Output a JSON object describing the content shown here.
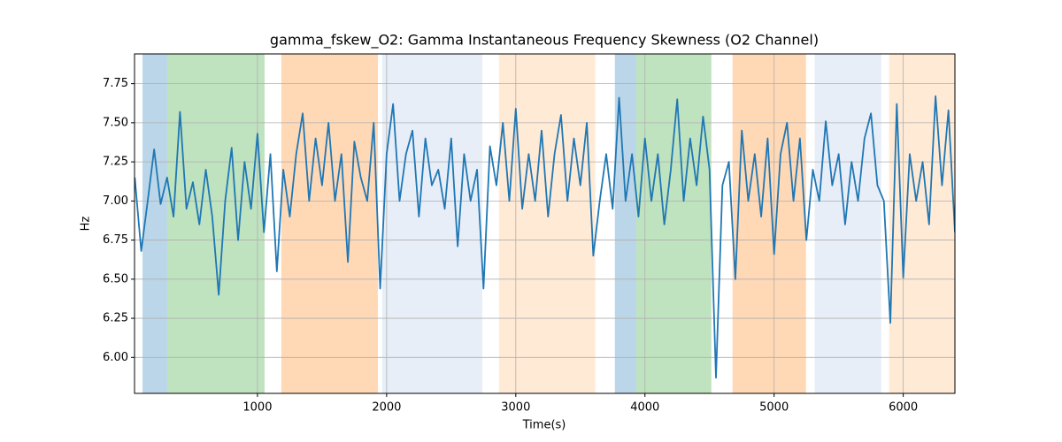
{
  "chart_data": {
    "type": "line",
    "title": "gamma_fskew_O2: Gamma Instantaneous Frequency Skewness (O2 Channel)",
    "xlabel": "Time(s)",
    "ylabel": "Hz",
    "xlim": [
      48,
      6400
    ],
    "ylim": [
      5.77,
      7.94
    ],
    "xticks": [
      1000,
      2000,
      3000,
      4000,
      5000,
      6000
    ],
    "yticks": [
      {
        "value": 6.0,
        "label": "6.00"
      },
      6.25,
      {
        "value": 6.5,
        "label": "6.50"
      },
      6.75,
      {
        "value": 7.0,
        "label": "7.00"
      },
      7.25,
      {
        "value": 7.5,
        "label": "7.50"
      },
      7.75
    ],
    "grid": true,
    "spans": [
      {
        "x0": 110,
        "x1": 301,
        "color": "#1f77b4"
      },
      {
        "x0": 301,
        "x1": 1055,
        "color": "#2ca02c"
      },
      {
        "x0": 1185,
        "x1": 1932,
        "color": "#ff7f0e"
      },
      {
        "x0": 1966,
        "x1": 2740,
        "color": "#aec7e8"
      },
      {
        "x0": 2870,
        "x1": 3616,
        "color": "#ffbb78"
      },
      {
        "x0": 3767,
        "x1": 3932,
        "color": "#1f77b4"
      },
      {
        "x0": 3932,
        "x1": 4514,
        "color": "#2ca02c"
      },
      {
        "x0": 4678,
        "x1": 5247,
        "color": "#ff7f0e"
      },
      {
        "x0": 5315,
        "x1": 5829,
        "color": "#aec7e8"
      },
      {
        "x0": 5890,
        "x1": 6397,
        "color": "#ffbb78"
      }
    ],
    "x": [
      50,
      100,
      150,
      200,
      250,
      300,
      350,
      400,
      450,
      500,
      550,
      600,
      650,
      700,
      750,
      800,
      850,
      900,
      950,
      1000,
      1050,
      1100,
      1150,
      1200,
      1250,
      1300,
      1350,
      1400,
      1450,
      1500,
      1550,
      1600,
      1650,
      1700,
      1750,
      1800,
      1850,
      1900,
      1950,
      2000,
      2050,
      2100,
      2150,
      2200,
      2250,
      2300,
      2350,
      2400,
      2450,
      2500,
      2550,
      2600,
      2650,
      2700,
      2750,
      2800,
      2850,
      2900,
      2950,
      3000,
      3050,
      3100,
      3150,
      3200,
      3250,
      3300,
      3350,
      3400,
      3450,
      3500,
      3550,
      3600,
      3650,
      3700,
      3750,
      3800,
      3850,
      3900,
      3950,
      4000,
      4050,
      4100,
      4150,
      4200,
      4250,
      4300,
      4350,
      4400,
      4450,
      4500,
      4550,
      4600,
      4650,
      4700,
      4750,
      4800,
      4850,
      4900,
      4950,
      5000,
      5050,
      5100,
      5150,
      5200,
      5250,
      5300,
      5350,
      5400,
      5450,
      5500,
      5550,
      5600,
      5650,
      5700,
      5750,
      5800,
      5850,
      5900,
      5950,
      6000,
      6050,
      6100,
      6150,
      6200,
      6250,
      6300,
      6350,
      6400
    ],
    "series": [
      {
        "name": "gamma_fskew_O2",
        "color": "#1f77b4",
        "values": [
          7.15,
          6.68,
          7.0,
          7.33,
          6.98,
          7.15,
          6.9,
          7.57,
          6.95,
          7.12,
          6.85,
          7.2,
          6.9,
          6.4,
          7.0,
          7.34,
          6.75,
          7.25,
          6.95,
          7.43,
          6.8,
          7.3,
          6.55,
          7.2,
          6.9,
          7.3,
          7.56,
          7.0,
          7.4,
          7.1,
          7.5,
          7.0,
          7.3,
          6.61,
          7.38,
          7.15,
          7.0,
          7.5,
          6.44,
          7.3,
          7.62,
          7.0,
          7.3,
          7.45,
          6.9,
          7.4,
          7.1,
          7.2,
          6.95,
          7.4,
          6.71,
          7.3,
          7.0,
          7.2,
          6.44,
          7.35,
          7.1,
          7.5,
          7.0,
          7.59,
          6.95,
          7.3,
          7.0,
          7.45,
          6.9,
          7.3,
          7.55,
          7.0,
          7.4,
          7.1,
          7.5,
          6.65,
          7.0,
          7.3,
          6.95,
          7.66,
          7.0,
          7.3,
          6.9,
          7.4,
          7.0,
          7.3,
          6.85,
          7.2,
          7.65,
          7.0,
          7.4,
          7.1,
          7.54,
          7.2,
          5.87,
          7.1,
          7.25,
          6.5,
          7.45,
          7.0,
          7.3,
          6.9,
          7.4,
          6.66,
          7.3,
          7.5,
          7.0,
          7.4,
          6.75,
          7.2,
          7.0,
          7.51,
          7.1,
          7.3,
          6.85,
          7.25,
          7.0,
          7.4,
          7.56,
          7.1,
          7.0,
          6.22,
          7.62,
          6.51,
          7.3,
          7.0,
          7.25,
          6.85,
          7.67,
          7.1,
          7.58,
          6.8
        ]
      }
    ]
  }
}
